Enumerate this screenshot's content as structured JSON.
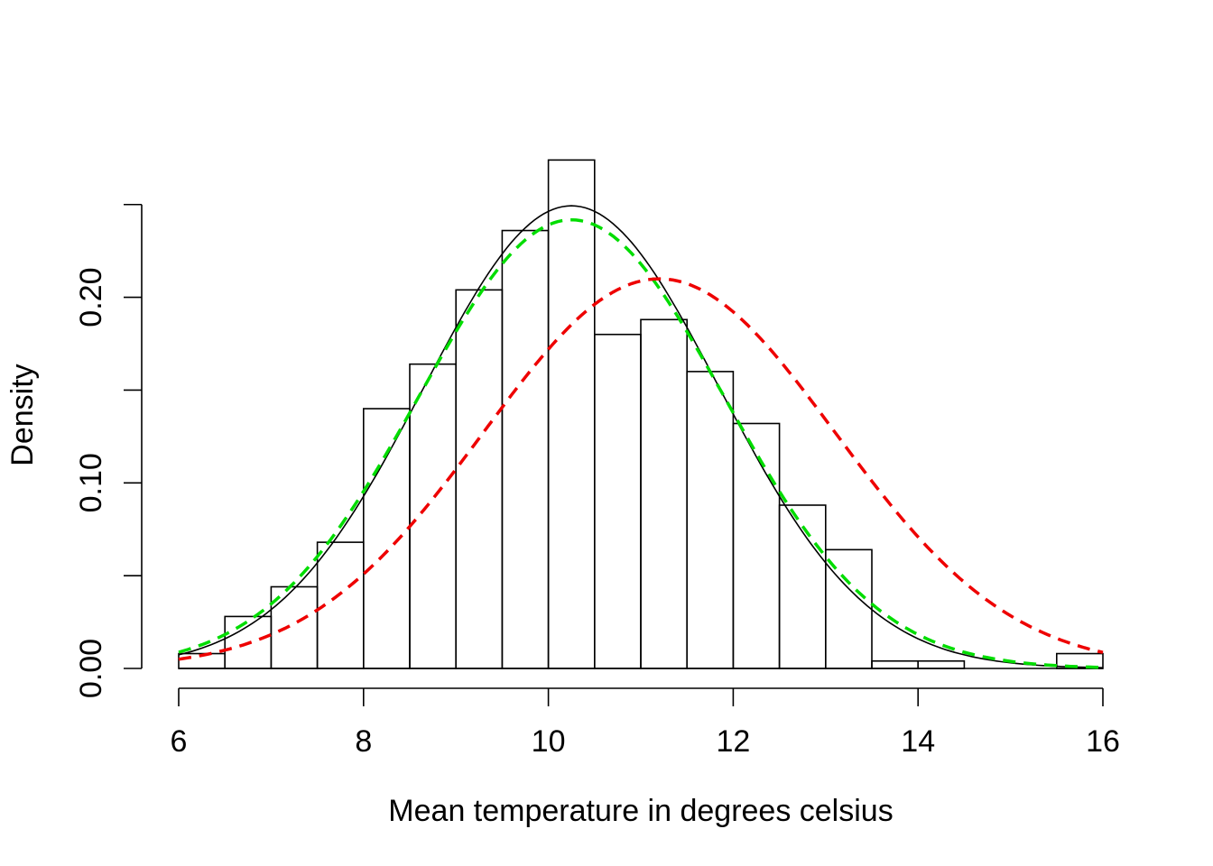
{
  "chart_data": {
    "type": "bar",
    "title": "",
    "xlabel": "Mean temperature in degrees celsius",
    "ylabel": "Density",
    "xlim": [
      6,
      16
    ],
    "ylim": [
      0,
      0.25
    ],
    "x_ticks": [
      6,
      8,
      10,
      12,
      14,
      16
    ],
    "x_tick_labels": [
      "6",
      "8",
      "10",
      "12",
      "14",
      "16"
    ],
    "y_ticks": [
      0.0,
      0.05,
      0.1,
      0.15,
      0.2,
      0.25
    ],
    "y_tick_labels": [
      "0.00",
      "",
      "0.10",
      "",
      "0.20",
      ""
    ],
    "bin_edges": [
      6,
      6.5,
      7,
      7.5,
      8,
      8.5,
      9,
      9.5,
      10,
      10.5,
      11,
      11.5,
      12,
      12.5,
      13,
      13.5,
      14,
      14.5,
      15,
      15.5,
      16
    ],
    "values": [
      0.008,
      0.028,
      0.044,
      0.068,
      0.14,
      0.164,
      0.204,
      0.236,
      0.274,
      0.18,
      0.188,
      0.16,
      0.132,
      0.088,
      0.064,
      0.004,
      0.004,
      0.0,
      0.0,
      0.008
    ],
    "grid": false,
    "series": [
      {
        "style": "solid",
        "color": "#000000",
        "mean": 10.25,
        "sd": 1.6
      },
      {
        "style": "dashed",
        "color": "#00dd00",
        "mean": 10.25,
        "sd": 1.65
      },
      {
        "style": "dashed",
        "color": "#ee0000",
        "mean": 11.2,
        "sd": 1.9
      }
    ]
  }
}
